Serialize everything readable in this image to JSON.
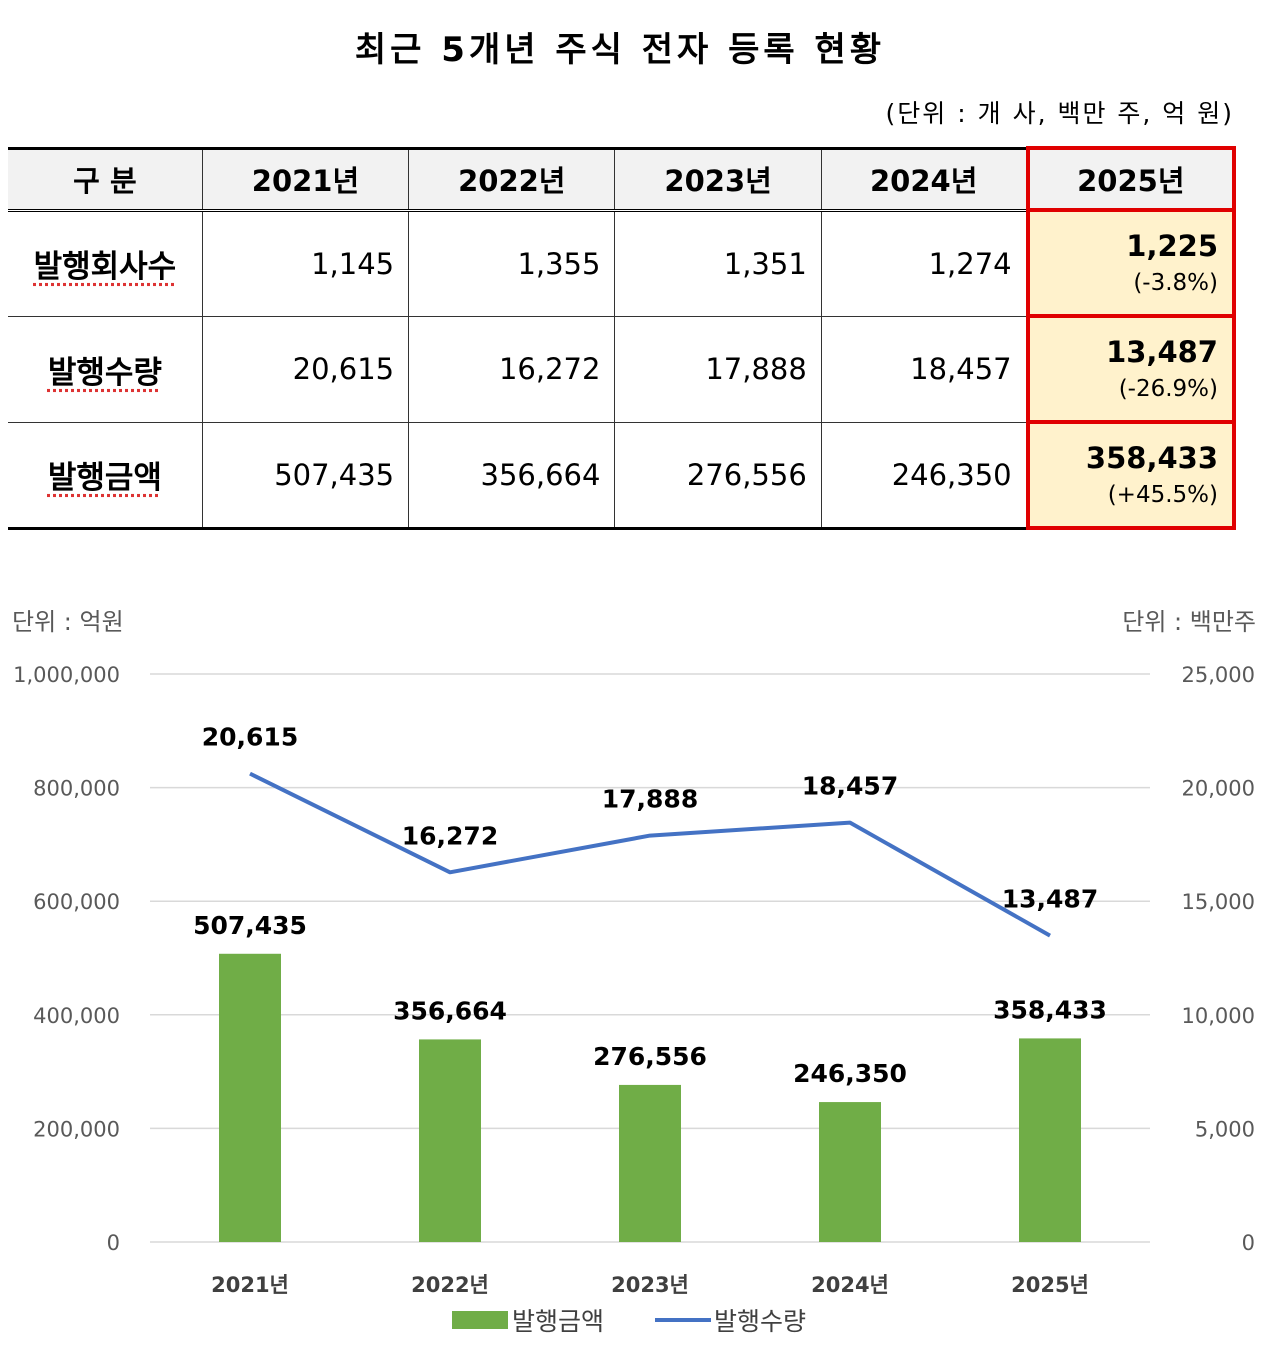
{
  "title": "최근 5개년 주식 전자 등록 현황",
  "unit_note": "(단위 : 개 사, 백만 주, 억 원)",
  "table": {
    "header_label": "구  분",
    "years": [
      "2021년",
      "2022년",
      "2023년",
      "2024년",
      "2025년"
    ],
    "rows": [
      {
        "label": "발행회사수",
        "values": [
          "1,145",
          "1,355",
          "1,351",
          "1,274"
        ],
        "current": "1,225",
        "change": "(-3.8%)"
      },
      {
        "label": "발행수량",
        "values": [
          "20,615",
          "16,272",
          "17,888",
          "18,457"
        ],
        "current": "13,487",
        "change": "(-26.9%)"
      },
      {
        "label": "발행금액",
        "values": [
          "507,435",
          "356,664",
          "276,556",
          "246,350"
        ],
        "current": "358,433",
        "change": "(+45.5%)"
      }
    ]
  },
  "chart_data": {
    "type": "bar",
    "categories": [
      "2021년",
      "2022년",
      "2023년",
      "2024년",
      "2025년"
    ],
    "left_unit": "단위 : 억원",
    "right_unit": "단위 : 백만주",
    "left_ticks": [
      "0",
      "200,000",
      "400,000",
      "600,000",
      "800,000",
      "1,000,000"
    ],
    "right_ticks": [
      "0",
      "5,000",
      "10,000",
      "15,000",
      "20,000",
      "25,000"
    ],
    "ylim_left": [
      0,
      1000000
    ],
    "ylim_right": [
      0,
      25000
    ],
    "grid": true,
    "legend_position": "bottom",
    "series": [
      {
        "name": "발행금액",
        "type": "bar",
        "axis": "left",
        "color": "#70ad47",
        "values": [
          507435,
          356664,
          276556,
          246350,
          358433
        ],
        "labels": [
          "507,435",
          "356,664",
          "276,556",
          "246,350",
          "358,433"
        ]
      },
      {
        "name": "발행수량",
        "type": "line",
        "axis": "right",
        "color": "#4472c4",
        "values": [
          20615,
          16272,
          17888,
          18457,
          13487
        ],
        "labels": [
          "20,615",
          "16,272",
          "17,888",
          "18,457",
          "13,487"
        ]
      }
    ]
  }
}
